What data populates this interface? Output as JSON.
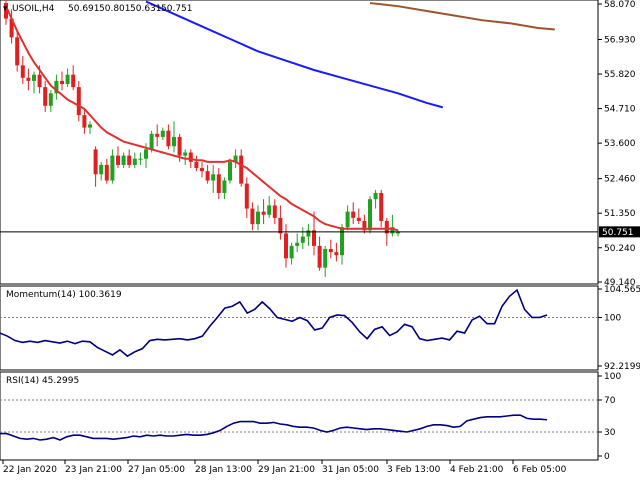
{
  "header": {
    "symbol": "USOIL,H4",
    "open": "50.691",
    "high": "50.801",
    "low": "50.631",
    "close": "50.751"
  },
  "momentum": {
    "label": "Momentum(14) 100.3619"
  },
  "rsi": {
    "label": "RSI(14) 45.2995"
  },
  "colors": {
    "bull": "#21a021",
    "bear": "#e02020",
    "ma_red": "#e03030",
    "ma_blue": "#1a1aff",
    "ma_brown": "#a0522d",
    "indicator": "#000080",
    "grid_level": "#808080",
    "price_box": "#000000"
  },
  "chart_data": [
    {
      "type": "candlestick",
      "title": "USOIL,H4",
      "price_axis_ticks": [
        "58.070",
        "56.930",
        "55.820",
        "54.710",
        "53.600",
        "52.460",
        "51.350",
        "50.240",
        "49.140"
      ],
      "ylim": [
        49.14,
        58.07
      ],
      "current_price": "50.751",
      "time_labels": [
        "22 Jan 2020",
        "23 Jan 21:00",
        "27 Jan 05:00",
        "28 Jan 13:00",
        "29 Jan 21:00",
        "31 Jan 05:00",
        "3 Feb 13:00",
        "4 Feb 21:00",
        "6 Feb 05:00"
      ],
      "candles": [
        [
          58.1,
          58.3,
          57.4,
          57.6
        ],
        [
          57.6,
          57.9,
          56.8,
          57.0
        ],
        [
          57.0,
          57.2,
          55.9,
          56.1
        ],
        [
          56.1,
          56.4,
          55.5,
          55.7
        ],
        [
          55.7,
          56.0,
          55.3,
          55.6
        ],
        [
          55.6,
          55.9,
          55.2,
          55.8
        ],
        [
          55.8,
          56.1,
          55.2,
          55.4
        ],
        [
          55.4,
          55.6,
          54.6,
          54.8
        ],
        [
          54.8,
          55.3,
          54.6,
          55.2
        ],
        [
          55.2,
          55.8,
          55.0,
          55.6
        ],
        [
          55.6,
          55.9,
          55.3,
          55.5
        ],
        [
          55.5,
          56.0,
          55.4,
          55.8
        ],
        [
          55.8,
          56.1,
          55.3,
          55.4
        ],
        [
          55.4,
          55.6,
          54.3,
          54.5
        ],
        [
          54.5,
          54.7,
          53.9,
          54.1
        ],
        [
          54.1,
          54.3,
          53.9,
          54.2
        ],
        [
          53.4,
          53.5,
          52.2,
          52.6
        ],
        [
          52.6,
          53.0,
          52.4,
          52.9
        ],
        [
          52.9,
          53.1,
          52.3,
          52.4
        ],
        [
          52.4,
          53.4,
          52.3,
          53.2
        ],
        [
          53.2,
          53.5,
          52.8,
          52.9
        ],
        [
          52.9,
          53.3,
          52.8,
          53.2
        ],
        [
          53.2,
          53.4,
          52.8,
          52.9
        ],
        [
          52.9,
          53.3,
          52.8,
          53.1
        ],
        [
          53.1,
          53.3,
          52.9,
          53.1
        ],
        [
          53.1,
          53.6,
          52.8,
          53.4
        ],
        [
          53.4,
          54.0,
          53.3,
          53.9
        ],
        [
          53.9,
          54.2,
          53.5,
          53.8
        ],
        [
          53.8,
          54.1,
          53.7,
          54.0
        ],
        [
          54.0,
          54.2,
          53.4,
          53.5
        ],
        [
          53.5,
          54.3,
          53.3,
          53.8
        ],
        [
          53.8,
          53.9,
          53.0,
          53.2
        ],
        [
          53.2,
          53.4,
          52.9,
          53.3
        ],
        [
          53.3,
          53.4,
          52.8,
          53.0
        ],
        [
          53.0,
          53.2,
          52.7,
          52.8
        ],
        [
          52.8,
          53.0,
          52.5,
          52.7
        ],
        [
          52.7,
          52.9,
          52.3,
          52.4
        ],
        [
          52.4,
          52.9,
          52.0,
          52.6
        ],
        [
          52.6,
          52.8,
          51.8,
          52.0
        ],
        [
          52.0,
          52.5,
          51.8,
          52.4
        ],
        [
          52.4,
          53.1,
          52.3,
          53.0
        ],
        [
          53.0,
          53.4,
          52.8,
          53.2
        ],
        [
          53.2,
          53.4,
          52.2,
          52.3
        ],
        [
          52.3,
          52.5,
          51.2,
          51.5
        ],
        [
          51.5,
          51.7,
          50.8,
          51.0
        ],
        [
          51.0,
          51.6,
          50.8,
          51.4
        ],
        [
          51.4,
          51.8,
          51.0,
          51.3
        ],
        [
          51.3,
          51.9,
          51.2,
          51.6
        ],
        [
          51.6,
          51.8,
          51.0,
          51.2
        ],
        [
          51.2,
          51.6,
          50.5,
          50.7
        ],
        [
          50.7,
          51.0,
          49.6,
          49.9
        ],
        [
          49.9,
          50.4,
          49.7,
          50.3
        ],
        [
          50.3,
          50.7,
          50.1,
          50.4
        ],
        [
          50.4,
          50.9,
          50.2,
          50.6
        ],
        [
          50.6,
          51.0,
          50.3,
          50.8
        ],
        [
          50.8,
          51.4,
          50.0,
          50.3
        ],
        [
          50.3,
          50.6,
          49.5,
          49.6
        ],
        [
          49.6,
          50.3,
          49.3,
          50.2
        ],
        [
          50.2,
          50.5,
          49.9,
          50.1
        ],
        [
          50.1,
          50.4,
          49.8,
          50.0
        ],
        [
          50.0,
          51.0,
          49.7,
          50.9
        ],
        [
          50.9,
          51.6,
          50.8,
          51.4
        ],
        [
          51.4,
          51.7,
          51.0,
          51.2
        ],
        [
          51.2,
          51.5,
          51.0,
          51.1
        ],
        [
          51.1,
          51.3,
          50.7,
          50.8
        ],
        [
          50.8,
          51.9,
          50.7,
          51.8
        ],
        [
          51.8,
          52.1,
          51.5,
          52.0
        ],
        [
          52.0,
          52.1,
          50.9,
          51.1
        ],
        [
          51.1,
          51.2,
          50.3,
          50.7
        ],
        [
          50.7,
          51.3,
          50.6,
          50.9
        ],
        [
          50.7,
          50.8,
          50.6,
          50.75
        ]
      ],
      "series": [
        {
          "name": "MA fast",
          "values": [
            58.0,
            57.6,
            57.2,
            56.85,
            56.5,
            56.2,
            55.95,
            55.7,
            55.45,
            55.3,
            55.15,
            55.0,
            54.9,
            54.8,
            54.7,
            54.5,
            54.3,
            54.1,
            53.95,
            53.85,
            53.75,
            53.65,
            53.6,
            53.55,
            53.5,
            53.45,
            53.4,
            53.35,
            53.3,
            53.25,
            53.2,
            53.15,
            53.1,
            53.1,
            53.05,
            53.05,
            53.0,
            53.0,
            53.0,
            53.0,
            53.05,
            53.0,
            52.9,
            52.8,
            52.65,
            52.5,
            52.35,
            52.2,
            52.05,
            51.9,
            51.8,
            51.65,
            51.55,
            51.45,
            51.35,
            51.25,
            51.1,
            51.0,
            50.95,
            50.9,
            50.85,
            50.85,
            50.85,
            50.85,
            50.85,
            50.85,
            50.85,
            50.85,
            50.85,
            50.85,
            50.8
          ]
        },
        {
          "name": "MA mid",
          "points": [
            [
              20,
              58.15
            ],
            [
              25,
              57.75
            ],
            [
              30,
              57.35
            ],
            [
              35,
              56.95
            ],
            [
              40,
              56.55
            ],
            [
              45,
              56.25
            ],
            [
              50,
              55.95
            ],
            [
              55,
              55.7
            ],
            [
              60,
              55.45
            ],
            [
              65,
              55.2
            ],
            [
              70,
              54.9
            ],
            [
              73,
              54.75
            ]
          ]
        },
        {
          "name": "MA slow",
          "points": [
            [
              40,
              58.1
            ],
            [
              45,
              58.0
            ],
            [
              50,
              57.85
            ],
            [
              55,
              57.7
            ],
            [
              60,
              57.55
            ],
            [
              65,
              57.45
            ],
            [
              70,
              57.3
            ],
            [
              73,
              57.25
            ]
          ]
        }
      ]
    },
    {
      "type": "line",
      "title": "Momentum(14) 100.3619",
      "ylim": [
        92.2199,
        104.5657
      ],
      "y_ticks": [
        "104.5657",
        "100",
        "92.2199"
      ],
      "reference_level": 100,
      "values": [
        97.5,
        97.0,
        96.3,
        96.0,
        96.2,
        96.0,
        96.3,
        96.1,
        95.9,
        96.2,
        95.8,
        96.2,
        96.1,
        95.2,
        94.6,
        94.0,
        94.8,
        93.8,
        94.5,
        95.0,
        96.3,
        96.5,
        96.4,
        96.5,
        96.6,
        96.4,
        96.6,
        97.0,
        98.6,
        100.0,
        101.5,
        101.8,
        102.5,
        100.7,
        101.3,
        102.5,
        101.4,
        100.0,
        99.7,
        99.4,
        100.0,
        99.5,
        98.0,
        98.3,
        100.0,
        100.4,
        100.3,
        99.2,
        97.7,
        96.6,
        98.1,
        98.5,
        97.1,
        97.7,
        98.9,
        98.5,
        96.6,
        96.3,
        96.5,
        96.7,
        96.4,
        97.8,
        97.5,
        99.6,
        100.2,
        99.0,
        99.0,
        101.8,
        103.4,
        104.4,
        101.3,
        100.0,
        100.0,
        100.4
      ]
    },
    {
      "type": "line",
      "title": "RSI(14) 45.2995",
      "ylim": [
        0,
        100
      ],
      "y_ticks": [
        "100",
        "70",
        "30",
        "0"
      ],
      "reference_levels": [
        70,
        30
      ],
      "values": [
        28,
        28,
        25,
        22,
        21,
        22,
        20,
        21,
        23,
        20,
        24,
        26,
        26,
        24,
        22,
        22,
        22,
        21,
        22,
        23,
        25,
        24,
        26,
        25,
        26,
        25,
        25,
        26,
        27,
        26,
        26,
        27,
        29,
        32,
        37,
        41,
        43,
        43,
        43,
        41,
        41,
        42,
        40,
        39,
        37,
        36,
        36,
        35,
        32,
        30,
        32,
        35,
        36,
        35,
        34,
        33,
        34,
        34,
        33,
        32,
        31,
        30,
        32,
        34,
        37,
        39,
        39,
        38,
        36,
        37,
        44,
        46,
        48,
        49,
        49,
        49,
        50,
        51,
        51,
        47,
        46,
        46,
        45.3
      ]
    }
  ]
}
